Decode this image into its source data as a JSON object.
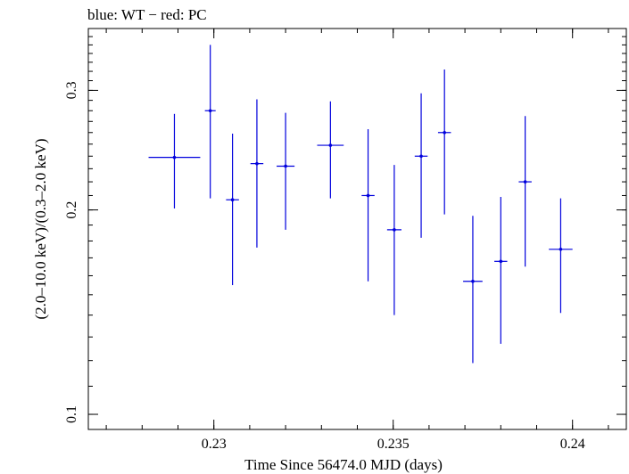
{
  "chart_data": {
    "type": "scatter",
    "title": "blue: WT − red: PC",
    "xlabel": "Time Since 56474.0 MJD (days)",
    "ylabel": "(2.0–10.0 keV)/(0.3–2.0 keV)",
    "xlim": [
      0.2265,
      0.2415
    ],
    "ylim": [
      0.095,
      0.37
    ],
    "y_scale": "log",
    "grid": false,
    "x_ticks": [
      {
        "value": 0.23,
        "label": "0.23"
      },
      {
        "value": 0.235,
        "label": "0.235"
      },
      {
        "value": 0.24,
        "label": "0.24"
      }
    ],
    "y_ticks": [
      {
        "value": 0.1,
        "label": "0.1"
      },
      {
        "value": 0.2,
        "label": "0.2"
      },
      {
        "value": 0.3,
        "label": "0.3"
      }
    ],
    "series": [
      {
        "color": "#0000dd",
        "points": [
          {
            "x": 0.2289,
            "xerr": 0.00072,
            "y": 0.239,
            "ylo": 0.201,
            "yhi": 0.277
          },
          {
            "x": 0.2299,
            "xerr": 0.00015,
            "y": 0.28,
            "ylo": 0.208,
            "yhi": 0.35
          },
          {
            "x": 0.23052,
            "xerr": 0.00018,
            "y": 0.207,
            "ylo": 0.155,
            "yhi": 0.259
          },
          {
            "x": 0.2312,
            "xerr": 0.00018,
            "y": 0.234,
            "ylo": 0.176,
            "yhi": 0.291
          },
          {
            "x": 0.232,
            "xerr": 0.00025,
            "y": 0.232,
            "ylo": 0.187,
            "yhi": 0.278
          },
          {
            "x": 0.23325,
            "xerr": 0.00037,
            "y": 0.249,
            "ylo": 0.208,
            "yhi": 0.289
          },
          {
            "x": 0.2343,
            "xerr": 0.00018,
            "y": 0.21,
            "ylo": 0.157,
            "yhi": 0.263
          },
          {
            "x": 0.23503,
            "xerr": 0.0002,
            "y": 0.187,
            "ylo": 0.14,
            "yhi": 0.233
          },
          {
            "x": 0.23578,
            "xerr": 0.00018,
            "y": 0.24,
            "ylo": 0.182,
            "yhi": 0.297
          },
          {
            "x": 0.23643,
            "xerr": 0.00018,
            "y": 0.26,
            "ylo": 0.197,
            "yhi": 0.322
          },
          {
            "x": 0.23722,
            "xerr": 0.00027,
            "y": 0.157,
            "ylo": 0.119,
            "yhi": 0.196
          },
          {
            "x": 0.238,
            "xerr": 0.00018,
            "y": 0.168,
            "ylo": 0.127,
            "yhi": 0.209
          },
          {
            "x": 0.23868,
            "xerr": 0.00018,
            "y": 0.22,
            "ylo": 0.165,
            "yhi": 0.275
          },
          {
            "x": 0.23967,
            "xerr": 0.00033,
            "y": 0.175,
            "ylo": 0.141,
            "yhi": 0.208
          }
        ]
      }
    ]
  }
}
